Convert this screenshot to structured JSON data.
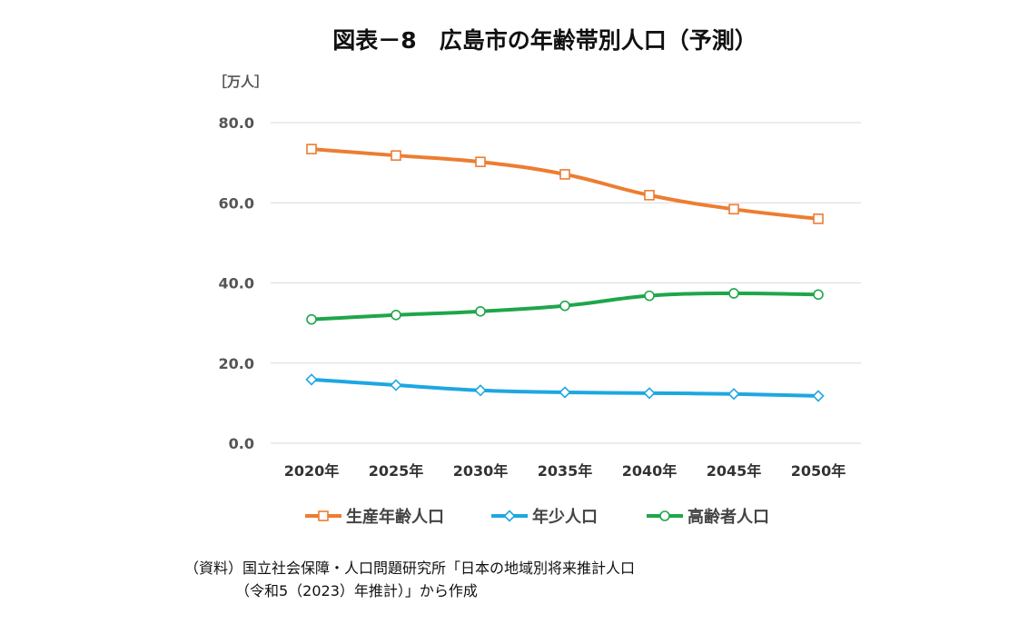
{
  "chart_data": {
    "type": "line",
    "title": "図表－8　広島市の年齢帯別人口（予測）",
    "unit_label": "［万人］",
    "categories": [
      "2020年",
      "2025年",
      "2030年",
      "2035年",
      "2040年",
      "2045年",
      "2050年"
    ],
    "ylim": [
      0,
      80
    ],
    "yticks": [
      "0.0",
      "20.0",
      "40.0",
      "60.0",
      "80.0"
    ],
    "grid": true,
    "legend_position": "bottom",
    "series": [
      {
        "name": "生産年齢人口",
        "color": "#ED7D31",
        "marker": "square",
        "values": [
          73.4,
          71.8,
          70.2,
          67.1,
          61.9,
          58.4,
          56.0
        ]
      },
      {
        "name": "年少人口",
        "color": "#1EA7E1",
        "marker": "diamond",
        "values": [
          15.9,
          14.5,
          13.2,
          12.7,
          12.5,
          12.3,
          11.8
        ]
      },
      {
        "name": "高齢者人口",
        "color": "#1FA64A",
        "marker": "circle",
        "values": [
          30.9,
          32.0,
          32.9,
          34.3,
          36.8,
          37.4,
          37.1
        ]
      }
    ]
  },
  "source": {
    "line1": "（資料）国立社会保障・人口問題研究所「日本の地域別将来推計人口",
    "line2": "　　　　（令和5（2023）年推計）」から作成"
  }
}
